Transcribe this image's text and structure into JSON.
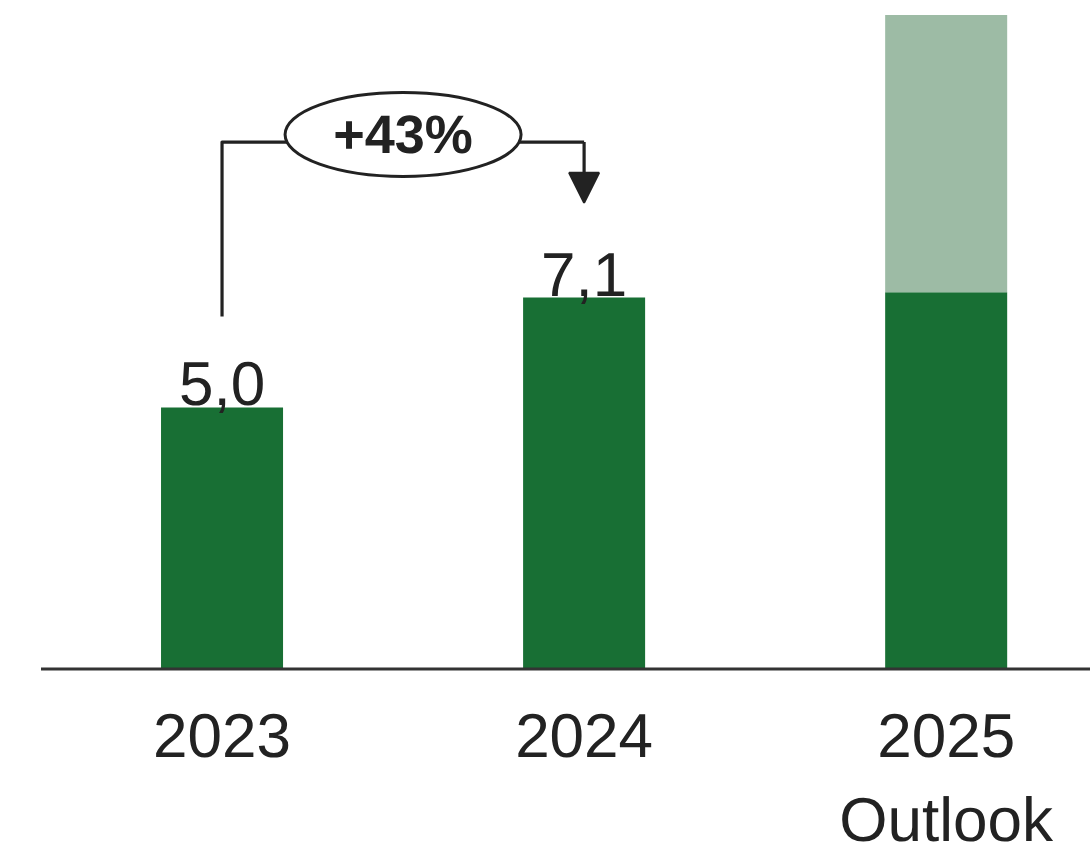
{
  "chart_data": {
    "type": "bar",
    "categories": [
      "2023",
      "2024",
      "2025 Outlook"
    ],
    "stacked": true,
    "series": [
      {
        "color": "#186f34",
        "values": [
          5.0,
          7.1,
          7.2
        ],
        "value_labels": [
          "5,0",
          "7,1",
          null
        ]
      },
      {
        "color": "#9dbba5",
        "values": [
          null,
          null,
          5.3
        ]
      }
    ],
    "annotations": [
      "+43%"
    ],
    "tick_labels": "x"
  }
}
